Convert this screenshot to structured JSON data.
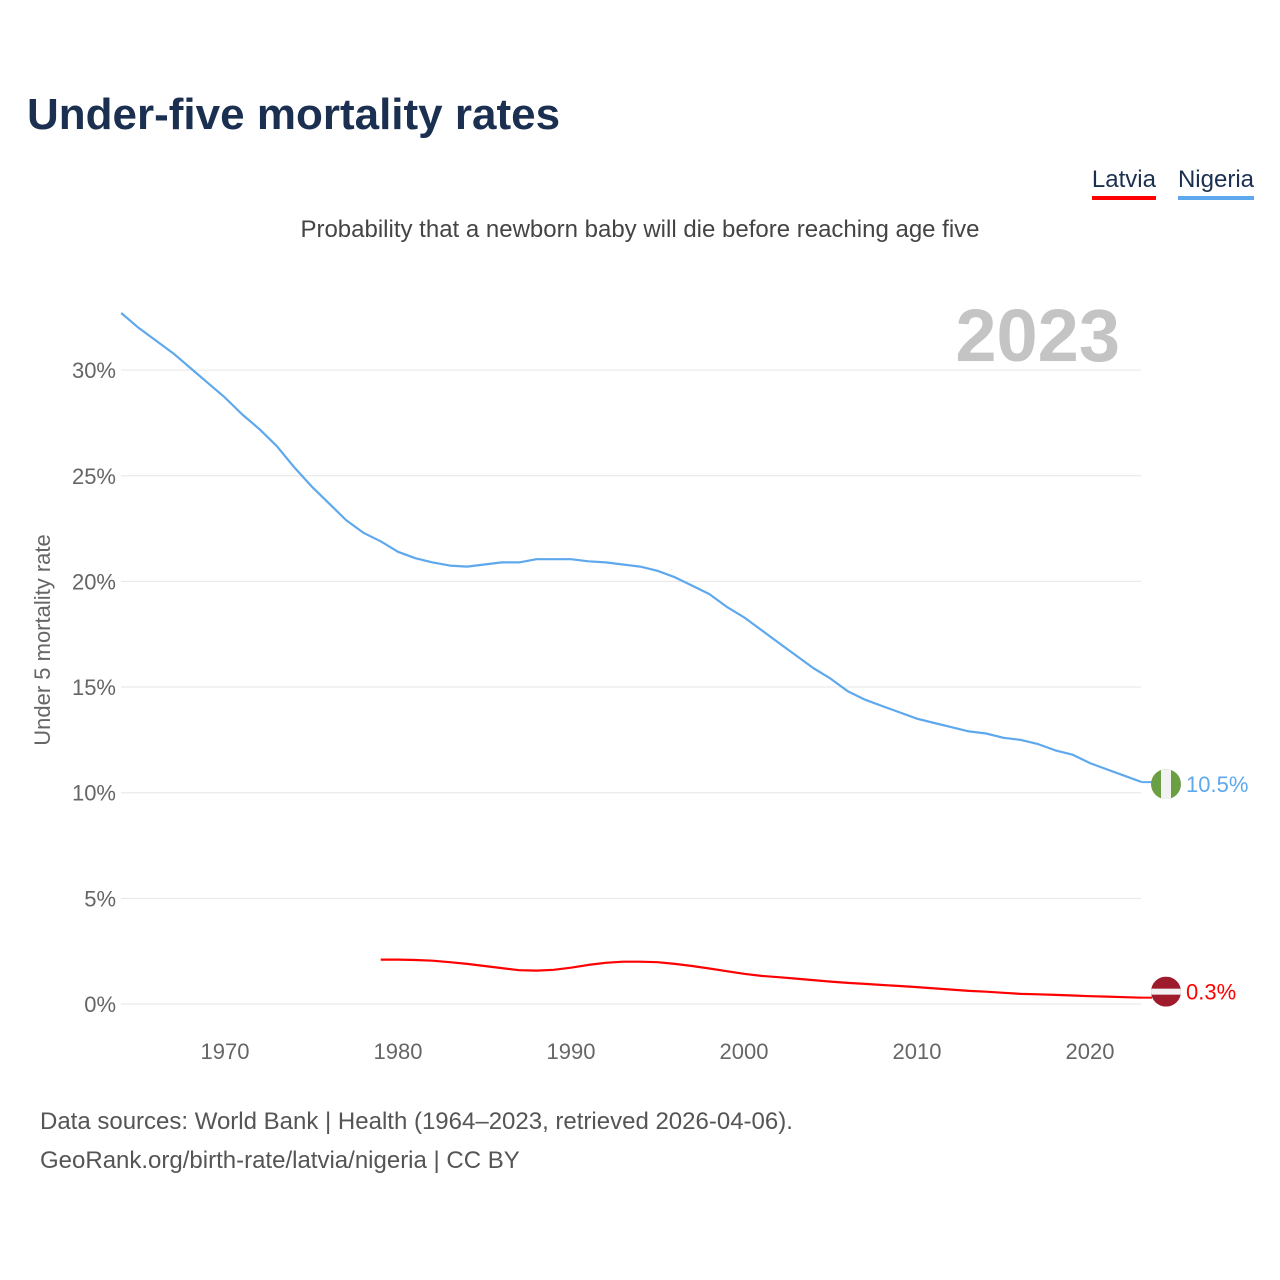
{
  "title": "Under-five mortality rates",
  "subtitle": "Probability that a newborn baby will die before reaching age five",
  "legend": [
    {
      "label": "Latvia",
      "color": "#ff0000"
    },
    {
      "label": "Nigeria",
      "color": "#5ea8ee"
    }
  ],
  "year_label": "2023",
  "footer": {
    "line1": "Data sources: World Bank | Health (1964–2023, retrieved 2026-04-06).",
    "line2": "GeoRank.org/birth-rate/latvia/nigeria | CC BY"
  },
  "chart_data": {
    "type": "line",
    "title": "Under-five mortality rates",
    "xlabel": "",
    "ylabel": "Under 5 mortality rate",
    "xlim": [
      1964,
      2023
    ],
    "ylim": [
      0,
      33
    ],
    "xticks": [
      1970,
      1980,
      1990,
      2000,
      2010,
      2020
    ],
    "yticks": [
      0,
      5,
      10,
      15,
      20,
      25,
      30
    ],
    "ytick_labels": [
      "0%",
      "5%",
      "10%",
      "15%",
      "20%",
      "25%",
      "30%"
    ],
    "grid": true,
    "legend_position": "top-right",
    "series": [
      {
        "name": "Nigeria",
        "color": "#5ea8ee",
        "end_label": "10.5%",
        "flag": "nigeria",
        "x": [
          1964,
          1965,
          1966,
          1967,
          1968,
          1969,
          1970,
          1971,
          1972,
          1973,
          1974,
          1975,
          1976,
          1977,
          1978,
          1979,
          1980,
          1981,
          1982,
          1983,
          1984,
          1985,
          1986,
          1987,
          1988,
          1989,
          1990,
          1991,
          1992,
          1993,
          1994,
          1995,
          1996,
          1997,
          1998,
          1999,
          2000,
          2001,
          2002,
          2003,
          2004,
          2005,
          2006,
          2007,
          2008,
          2009,
          2010,
          2011,
          2012,
          2013,
          2014,
          2015,
          2016,
          2017,
          2018,
          2019,
          2020,
          2021,
          2022,
          2023
        ],
        "y": [
          32.7,
          32.0,
          31.4,
          30.8,
          30.1,
          29.4,
          28.7,
          27.9,
          27.2,
          26.4,
          25.4,
          24.5,
          23.7,
          22.9,
          22.3,
          21.9,
          21.4,
          21.1,
          20.9,
          20.75,
          20.7,
          20.8,
          20.9,
          20.9,
          21.05,
          21.05,
          21.05,
          20.95,
          20.9,
          20.8,
          20.7,
          20.5,
          20.2,
          19.8,
          19.4,
          18.8,
          18.3,
          17.7,
          17.1,
          16.5,
          15.9,
          15.4,
          14.8,
          14.4,
          14.1,
          13.8,
          13.5,
          13.3,
          13.1,
          12.9,
          12.8,
          12.6,
          12.5,
          12.3,
          12.0,
          11.8,
          11.4,
          11.1,
          10.8,
          10.5
        ]
      },
      {
        "name": "Latvia",
        "color": "#ff0000",
        "end_label": "0.3%",
        "flag": "latvia",
        "x": [
          1979,
          1980,
          1981,
          1982,
          1983,
          1984,
          1985,
          1986,
          1987,
          1988,
          1989,
          1990,
          1991,
          1992,
          1993,
          1994,
          1995,
          1996,
          1997,
          1998,
          1999,
          2000,
          2001,
          2002,
          2003,
          2004,
          2005,
          2006,
          2007,
          2008,
          2009,
          2010,
          2011,
          2012,
          2013,
          2014,
          2015,
          2016,
          2017,
          2018,
          2019,
          2020,
          2021,
          2022,
          2023
        ],
        "y": [
          2.1,
          2.1,
          2.08,
          2.05,
          1.98,
          1.9,
          1.8,
          1.7,
          1.6,
          1.58,
          1.62,
          1.72,
          1.85,
          1.95,
          2.0,
          2.0,
          1.98,
          1.9,
          1.8,
          1.68,
          1.55,
          1.43,
          1.33,
          1.27,
          1.2,
          1.13,
          1.06,
          1.0,
          0.95,
          0.9,
          0.85,
          0.8,
          0.74,
          0.68,
          0.62,
          0.58,
          0.53,
          0.48,
          0.46,
          0.43,
          0.4,
          0.37,
          0.35,
          0.32,
          0.3
        ]
      }
    ]
  }
}
